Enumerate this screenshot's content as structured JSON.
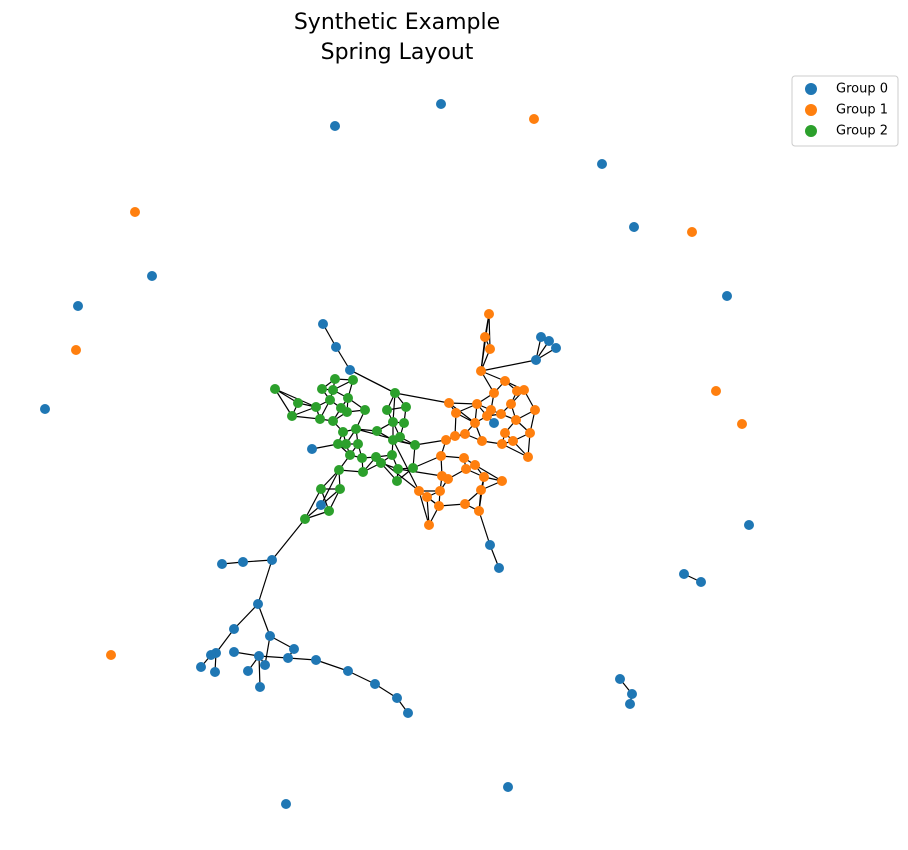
{
  "chart_data": {
    "type": "network",
    "title": "Synthetic Example",
    "subtitle": "Spring Layout",
    "series": [
      {
        "name": "Group 0",
        "color": "#1f77b4"
      },
      {
        "name": "Group 1",
        "color": "#ff7f0e"
      },
      {
        "name": "Group 2",
        "color": "#2ca02c"
      }
    ],
    "legend": "upper right"
  }
}
